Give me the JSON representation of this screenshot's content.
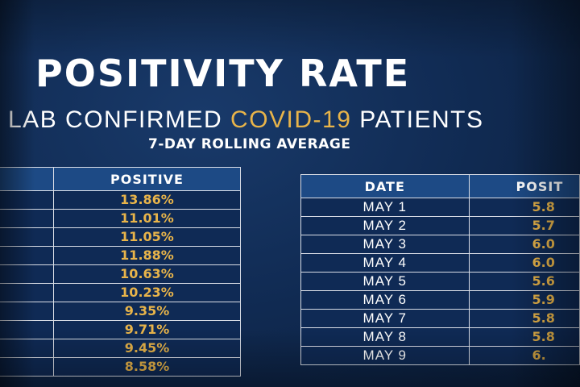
{
  "title": "POSITIVITY RATE",
  "subtitle": {
    "before": "LAB CONFIRMED ",
    "highlight": "COVID-19",
    "after": " PATIENTS"
  },
  "caption": "7-DAY ROLLING AVERAGE",
  "colors": {
    "board_background": "#112c55",
    "header_fill": "#1d4a85",
    "value_text": "#e8b44a",
    "label_text": "#ffffff"
  },
  "left_table": {
    "positive_header": "POSITIVE",
    "rows": [
      {
        "positive": "13.86%"
      },
      {
        "positive": "11.01%"
      },
      {
        "positive": "11.05%"
      },
      {
        "positive": "11.88%"
      },
      {
        "positive": "10.63%"
      },
      {
        "positive": "10.23%"
      },
      {
        "positive": "9.35%"
      },
      {
        "positive": "9.71%"
      },
      {
        "positive": "9.45%"
      },
      {
        "positive": "8.58%"
      }
    ]
  },
  "right_table": {
    "date_header": "DATE",
    "positive_header": "POSIT",
    "rows": [
      {
        "date": "MAY 1",
        "positive": "5.8"
      },
      {
        "date": "MAY 2",
        "positive": "5.7"
      },
      {
        "date": "MAY 3",
        "positive": "6.0"
      },
      {
        "date": "MAY 4",
        "positive": "6.0"
      },
      {
        "date": "MAY 5",
        "positive": "5.6"
      },
      {
        "date": "MAY 6",
        "positive": "5.9"
      },
      {
        "date": "MAY 7",
        "positive": "5.8"
      },
      {
        "date": "MAY 8",
        "positive": "5.8"
      },
      {
        "date": "MAY 9",
        "positive": "6."
      }
    ]
  }
}
